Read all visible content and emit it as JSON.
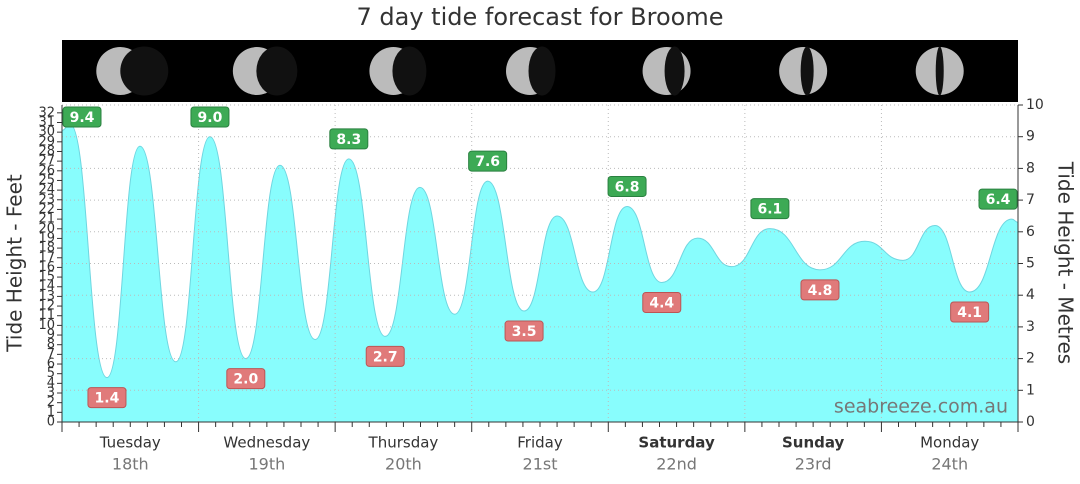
{
  "chart_data": {
    "type": "area",
    "title": "7 day tide forecast for Broome",
    "y_label": "Tide Height - Feet",
    "y2_label": "Tide Height - Metres",
    "watermark": "seabreeze.com.au",
    "days": [
      {
        "name": "Tuesday",
        "date": "18th"
      },
      {
        "name": "Wednesday",
        "date": "19th"
      },
      {
        "name": "Thursday",
        "date": "20th"
      },
      {
        "name": "Friday",
        "date": "21st"
      },
      {
        "name": "Saturday",
        "date": "22nd",
        "bold": true
      },
      {
        "name": "Sunday",
        "date": "23rd",
        "bold": true
      },
      {
        "name": "Monday",
        "date": "24th"
      }
    ],
    "xlim": [
      0,
      168
    ],
    "xticks": [
      0,
      24,
      48,
      72,
      96,
      120,
      144,
      168
    ],
    "xminorticks": [
      3,
      6,
      9,
      12,
      15,
      18,
      21,
      27,
      30,
      33,
      36,
      39,
      42,
      45,
      51,
      54,
      57,
      60,
      63,
      66,
      69,
      75,
      78,
      81,
      84,
      87,
      90,
      93,
      99,
      102,
      105,
      108,
      111,
      114,
      117,
      123,
      126,
      129,
      132,
      135,
      138,
      141,
      147,
      150,
      153,
      156,
      159,
      162,
      165
    ],
    "ylim": [
      0,
      32.81
    ],
    "yticks": [
      0,
      1,
      2,
      3,
      4,
      5,
      6,
      7,
      8,
      9,
      10,
      11,
      12,
      13,
      14,
      15,
      16,
      17,
      18,
      19,
      20,
      21,
      22,
      23,
      24,
      25,
      26,
      27,
      28,
      29,
      30,
      31,
      32
    ],
    "y2lim": [
      0,
      10
    ],
    "y2ticks": [
      0,
      1,
      2,
      3,
      4,
      5,
      6,
      7,
      8,
      9,
      10
    ],
    "grid": true,
    "series": [
      {
        "axis": "y2",
        "color": "#88fdfd",
        "line_color": "#6fd6e0",
        "x": [
          0,
          1.4,
          7.9,
          13.7,
          20.0,
          26.0,
          32.3,
          38.3,
          44.5,
          50.4,
          56.8,
          62.9,
          69.0,
          74.8,
          81.2,
          87.0,
          93.3,
          99.3,
          105.4,
          111.7,
          117.7,
          124.4,
          133.2,
          141.1,
          147.8,
          153.4,
          159.5,
          166.9,
          168
        ],
        "values": [
          9.2,
          9.4,
          1.4,
          8.7,
          1.9,
          9.0,
          2.0,
          8.1,
          2.6,
          8.3,
          2.7,
          7.4,
          3.4,
          7.6,
          3.5,
          6.5,
          4.1,
          6.8,
          4.4,
          5.8,
          4.9,
          6.1,
          4.8,
          5.7,
          5.1,
          6.2,
          4.1,
          6.4,
          6.3
        ],
        "value_labels": [
          null,
          "9.4",
          "1.4",
          null,
          null,
          "9.0",
          "2.0",
          null,
          null,
          "8.3",
          "2.7",
          null,
          null,
          "7.6",
          "3.5",
          null,
          null,
          "6.8",
          "4.4",
          null,
          null,
          "6.1",
          "4.8",
          null,
          null,
          null,
          "4.1",
          "6.4",
          null
        ]
      }
    ],
    "high_color": "#3daa55",
    "low_color": "#e07a7a"
  }
}
